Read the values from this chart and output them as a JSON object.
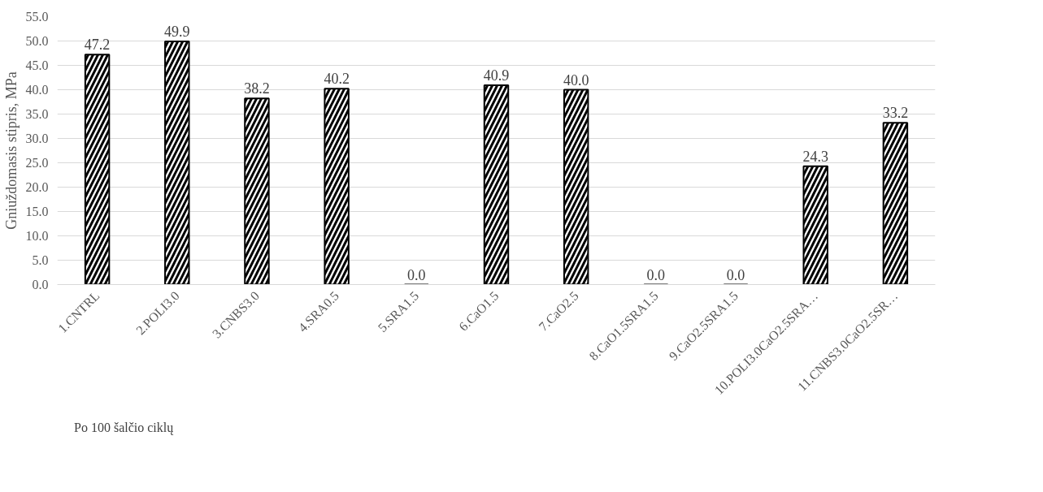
{
  "chart_data": {
    "type": "bar",
    "ylabel": "Gniuždomasis stipris, MPa",
    "categories": [
      "1.CNTRL",
      "2.POLI3.0",
      "3.CNBS3.0",
      "4.SRA0.5",
      "5.SRA1.5",
      "6.CaO1.5",
      "7.CaO2.5",
      "8.CaO1.5SRA1.5",
      "9.CaO2.5SRA1.5",
      "10.POLI3.0CaO2.5SRA…",
      "11.CNBS3.0CaO2.5SR…"
    ],
    "series": [
      {
        "name": "Po 100 šalčio ciklų",
        "color": "#000000",
        "values": [
          47.2,
          49.9,
          38.2,
          40.2,
          0.0,
          40.9,
          40.0,
          0.0,
          0.0,
          24.3,
          33.2
        ],
        "value_labels": [
          "47.2",
          "49.9",
          "38.2",
          "40.2",
          "0.0",
          "40.9",
          "40.0",
          "0.0",
          "0.0",
          "24.3",
          "33.2"
        ]
      }
    ],
    "ylim": [
      0,
      55
    ],
    "yticks": [
      {
        "value": 0,
        "label": "0.0"
      },
      {
        "value": 5,
        "label": "5.0"
      },
      {
        "value": 10,
        "label": "10.0"
      },
      {
        "value": 15,
        "label": "15.0"
      },
      {
        "value": 20,
        "label": "20.0"
      },
      {
        "value": 25,
        "label": "25.0"
      },
      {
        "value": 30,
        "label": "30.0"
      },
      {
        "value": 35,
        "label": "35.0"
      },
      {
        "value": 40,
        "label": "40.0"
      },
      {
        "value": 45,
        "label": "45.0"
      },
      {
        "value": 50,
        "label": "50.0"
      },
      {
        "value": 55,
        "label": "55.0"
      }
    ],
    "grid": "y",
    "legend": "bottom left"
  }
}
